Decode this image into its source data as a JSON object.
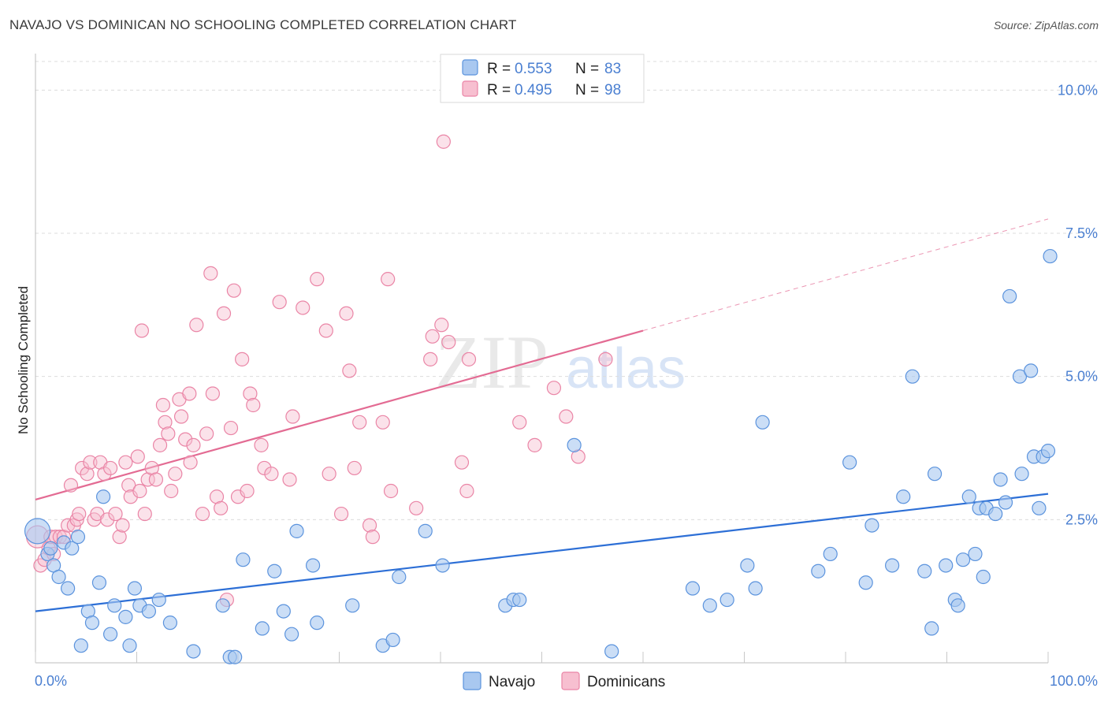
{
  "title": "NAVAJO VS DOMINICAN NO SCHOOLING COMPLETED CORRELATION CHART",
  "source": "Source: ZipAtlas.com",
  "watermark": {
    "zip": "ZIP",
    "atlas": "atlas"
  },
  "colors": {
    "navajo_fill": "#a9c8f0",
    "navajo_stroke": "#5b93dd",
    "navajo_line": "#2d6fd6",
    "dom_fill": "#f7bfd0",
    "dom_stroke": "#ea85a6",
    "dom_line": "#e36b93",
    "accent_text": "#4a7fd1",
    "grid": "#dcdcdc"
  },
  "legend": {
    "rows": [
      {
        "r_label": "R = ",
        "r_value": "0.553",
        "n_label": "N = ",
        "n_value": "83"
      },
      {
        "r_label": "R = ",
        "r_value": "0.495",
        "n_label": "N = ",
        "n_value": "98"
      }
    ]
  },
  "chart_data": {
    "type": "scatter",
    "title": "NAVAJO VS DOMINICAN NO SCHOOLING COMPLETED CORRELATION CHART",
    "xlabel": "",
    "ylabel": "No Schooling Completed",
    "xlim": [
      0,
      100
    ],
    "ylim": [
      0,
      10.5
    ],
    "x_tick_labels": [
      "0.0%",
      "100.0%"
    ],
    "y_ticks": [
      2.5,
      5.0,
      7.5,
      10.0
    ],
    "y_tick_labels": [
      "2.5%",
      "5.0%",
      "7.5%",
      "10.0%"
    ],
    "series": [
      {
        "name": "Navajo",
        "r": 0.553,
        "n": 83,
        "trend": {
          "x0": 0,
          "y0": 0.9,
          "x1": 100,
          "y1": 2.95
        },
        "points": [
          [
            0.2,
            2.3
          ],
          [
            1.2,
            1.9
          ],
          [
            1.5,
            2.0
          ],
          [
            1.8,
            1.7
          ],
          [
            2.3,
            1.5
          ],
          [
            2.8,
            2.1
          ],
          [
            3.2,
            1.3
          ],
          [
            3.6,
            2.0
          ],
          [
            4.2,
            2.2
          ],
          [
            4.5,
            0.3
          ],
          [
            5.2,
            0.9
          ],
          [
            5.6,
            0.7
          ],
          [
            6.3,
            1.4
          ],
          [
            6.7,
            2.9
          ],
          [
            7.4,
            0.5
          ],
          [
            7.8,
            1.0
          ],
          [
            8.9,
            0.8
          ],
          [
            9.3,
            0.3
          ],
          [
            9.8,
            1.3
          ],
          [
            10.3,
            1.0
          ],
          [
            11.2,
            0.9
          ],
          [
            12.2,
            1.1
          ],
          [
            13.3,
            0.7
          ],
          [
            15.6,
            0.2
          ],
          [
            18.5,
            1.0
          ],
          [
            19.2,
            0.1
          ],
          [
            19.7,
            0.1
          ],
          [
            20.5,
            1.8
          ],
          [
            22.4,
            0.6
          ],
          [
            23.6,
            1.6
          ],
          [
            24.5,
            0.9
          ],
          [
            25.3,
            0.5
          ],
          [
            25.8,
            2.3
          ],
          [
            27.4,
            1.7
          ],
          [
            27.8,
            0.7
          ],
          [
            31.3,
            1.0
          ],
          [
            34.3,
            0.3
          ],
          [
            35.3,
            0.4
          ],
          [
            35.9,
            1.5
          ],
          [
            38.5,
            2.3
          ],
          [
            40.2,
            1.7
          ],
          [
            46.4,
            1.0
          ],
          [
            47.2,
            1.1
          ],
          [
            47.8,
            1.1
          ],
          [
            53.2,
            3.8
          ],
          [
            56.9,
            0.2
          ],
          [
            64.9,
            1.3
          ],
          [
            66.6,
            1.0
          ],
          [
            68.3,
            1.1
          ],
          [
            70.3,
            1.7
          ],
          [
            71.1,
            1.3
          ],
          [
            71.8,
            4.2
          ],
          [
            77.3,
            1.6
          ],
          [
            78.5,
            1.9
          ],
          [
            80.4,
            3.5
          ],
          [
            82.0,
            1.4
          ],
          [
            82.6,
            2.4
          ],
          [
            84.6,
            1.7
          ],
          [
            85.7,
            2.9
          ],
          [
            86.6,
            5.0
          ],
          [
            87.8,
            1.6
          ],
          [
            88.5,
            0.6
          ],
          [
            88.8,
            3.3
          ],
          [
            89.9,
            1.7
          ],
          [
            90.8,
            1.1
          ],
          [
            91.1,
            1.0
          ],
          [
            91.6,
            1.8
          ],
          [
            92.2,
            2.9
          ],
          [
            92.8,
            1.9
          ],
          [
            93.2,
            2.7
          ],
          [
            93.6,
            1.5
          ],
          [
            93.9,
            2.7
          ],
          [
            94.8,
            2.6
          ],
          [
            95.3,
            3.2
          ],
          [
            95.8,
            2.8
          ],
          [
            96.2,
            6.4
          ],
          [
            97.2,
            5.0
          ],
          [
            97.4,
            3.3
          ],
          [
            98.3,
            5.1
          ],
          [
            98.6,
            3.6
          ],
          [
            99.1,
            2.7
          ],
          [
            99.5,
            3.6
          ],
          [
            100.0,
            3.7
          ],
          [
            100.2,
            7.1
          ]
        ]
      },
      {
        "name": "Dominicans",
        "r": 0.495,
        "n": 98,
        "trend": {
          "x0": 0,
          "y0": 2.85,
          "x1": 60,
          "y1": 5.8
        },
        "trend_extension": {
          "x0": 60,
          "y0": 5.8,
          "x1": 100,
          "y1": 7.75
        },
        "points": [
          [
            0.2,
            2.2
          ],
          [
            0.5,
            1.7
          ],
          [
            0.9,
            1.8
          ],
          [
            1.3,
            2.0
          ],
          [
            1.5,
            2.2
          ],
          [
            1.8,
            1.9
          ],
          [
            2.0,
            2.2
          ],
          [
            2.4,
            2.2
          ],
          [
            2.8,
            2.2
          ],
          [
            3.2,
            2.4
          ],
          [
            3.5,
            3.1
          ],
          [
            3.8,
            2.4
          ],
          [
            4.1,
            2.5
          ],
          [
            4.3,
            2.6
          ],
          [
            4.6,
            3.4
          ],
          [
            5.1,
            3.3
          ],
          [
            5.4,
            3.5
          ],
          [
            5.8,
            2.5
          ],
          [
            6.1,
            2.6
          ],
          [
            6.4,
            3.5
          ],
          [
            6.8,
            3.3
          ],
          [
            7.1,
            2.5
          ],
          [
            7.4,
            3.4
          ],
          [
            7.9,
            2.6
          ],
          [
            8.3,
            2.2
          ],
          [
            8.6,
            2.4
          ],
          [
            8.9,
            3.5
          ],
          [
            9.2,
            3.1
          ],
          [
            9.4,
            2.9
          ],
          [
            10.1,
            3.6
          ],
          [
            10.3,
            3.0
          ],
          [
            10.5,
            5.8
          ],
          [
            10.8,
            2.6
          ],
          [
            11.1,
            3.2
          ],
          [
            11.5,
            3.4
          ],
          [
            11.9,
            3.2
          ],
          [
            12.3,
            3.8
          ],
          [
            12.6,
            4.5
          ],
          [
            12.8,
            4.2
          ],
          [
            13.1,
            4.0
          ],
          [
            13.4,
            3.0
          ],
          [
            13.8,
            3.3
          ],
          [
            14.2,
            4.6
          ],
          [
            14.4,
            4.3
          ],
          [
            14.8,
            3.9
          ],
          [
            15.2,
            4.7
          ],
          [
            15.3,
            3.5
          ],
          [
            15.6,
            3.8
          ],
          [
            15.9,
            5.9
          ],
          [
            16.5,
            2.6
          ],
          [
            16.9,
            4.0
          ],
          [
            17.3,
            6.8
          ],
          [
            17.5,
            4.7
          ],
          [
            17.9,
            2.9
          ],
          [
            18.3,
            2.7
          ],
          [
            18.6,
            6.1
          ],
          [
            18.9,
            1.1
          ],
          [
            19.3,
            4.1
          ],
          [
            19.6,
            6.5
          ],
          [
            20.0,
            2.9
          ],
          [
            20.4,
            5.3
          ],
          [
            20.9,
            3.0
          ],
          [
            21.2,
            4.7
          ],
          [
            21.5,
            4.5
          ],
          [
            22.3,
            3.8
          ],
          [
            22.6,
            3.4
          ],
          [
            23.3,
            3.3
          ],
          [
            24.1,
            6.3
          ],
          [
            25.1,
            3.2
          ],
          [
            25.4,
            4.3
          ],
          [
            26.4,
            6.2
          ],
          [
            27.8,
            6.7
          ],
          [
            28.7,
            5.8
          ],
          [
            29.0,
            3.3
          ],
          [
            30.2,
            2.6
          ],
          [
            30.7,
            6.1
          ],
          [
            31.0,
            5.1
          ],
          [
            31.5,
            3.4
          ],
          [
            32.0,
            4.2
          ],
          [
            33.0,
            2.4
          ],
          [
            33.3,
            2.2
          ],
          [
            34.3,
            4.2
          ],
          [
            34.8,
            6.7
          ],
          [
            35.1,
            3.0
          ],
          [
            37.6,
            2.7
          ],
          [
            39.0,
            5.3
          ],
          [
            39.2,
            5.7
          ],
          [
            40.1,
            5.9
          ],
          [
            40.3,
            9.1
          ],
          [
            40.8,
            5.6
          ],
          [
            42.1,
            3.5
          ],
          [
            42.6,
            3.0
          ],
          [
            42.8,
            5.3
          ],
          [
            47.8,
            4.2
          ],
          [
            49.3,
            3.8
          ],
          [
            51.2,
            4.8
          ],
          [
            52.4,
            4.3
          ],
          [
            53.6,
            3.6
          ],
          [
            56.3,
            5.3
          ]
        ]
      }
    ]
  }
}
